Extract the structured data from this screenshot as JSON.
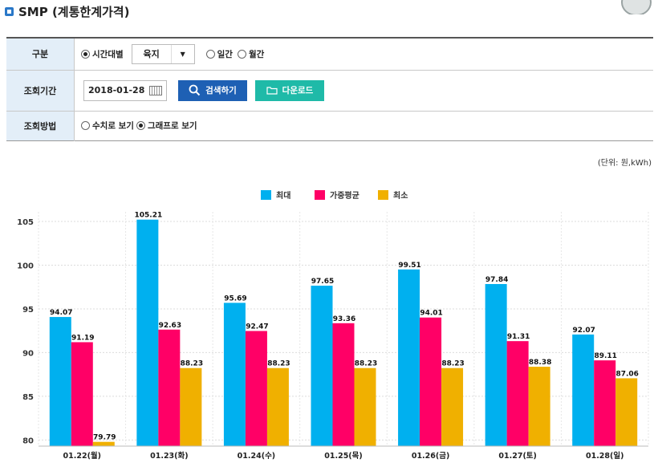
{
  "page": {
    "title": "SMP (계통한계가격)"
  },
  "form": {
    "row1": {
      "label": "구분",
      "radio_hourly": "시간대별",
      "select_value": "육지",
      "radio_daily": "일간",
      "radio_monthly": "월간"
    },
    "row2": {
      "label": "조회기간",
      "date": "2018-01-28",
      "search_label": "검색하기",
      "download_label": "다운로드"
    },
    "row3": {
      "label": "조회방법",
      "radio_numeric": "수치로 보기",
      "radio_graph": "그래프로 보기"
    }
  },
  "unit_label": "(단위: 원,kWh)",
  "colors": {
    "max": "#00b0ef",
    "avg": "#ff0066",
    "min": "#f0b000"
  },
  "chart_data": {
    "type": "bar",
    "title": "",
    "categories": [
      "01.22(월)",
      "01.23(화)",
      "01.24(수)",
      "01.25(목)",
      "01.26(금)",
      "01.27(토)",
      "01.28(일)"
    ],
    "series": [
      {
        "name": "최대",
        "values": [
          94.07,
          105.21,
          95.69,
          97.65,
          99.51,
          97.84,
          92.07
        ]
      },
      {
        "name": "가중평균",
        "values": [
          91.19,
          92.63,
          92.47,
          93.36,
          94.01,
          91.31,
          89.11
        ]
      },
      {
        "name": "최소",
        "values": [
          79.79,
          88.23,
          88.23,
          88.23,
          88.23,
          88.38,
          87.06
        ]
      }
    ],
    "value_labels": [
      [
        "94.07",
        "105.21",
        "95.69",
        "97.65",
        "99.51",
        "97.84",
        "92.07"
      ],
      [
        "91.19",
        "92.63",
        "92.47",
        "93.36",
        "94.01",
        "91.31",
        "89.11"
      ],
      [
        "79.79",
        "88.23",
        "88.23",
        "88.23",
        "88.23",
        "88.38",
        "87.06"
      ]
    ],
    "yticks": [
      80,
      85,
      90,
      95,
      100,
      105
    ],
    "ytick_labels": [
      "80",
      "85",
      "90",
      "95",
      "100",
      "105"
    ],
    "ylim": [
      79.3,
      106.1
    ],
    "xlabel": "",
    "ylabel": "",
    "legend_position": "top-center",
    "grid": true
  }
}
